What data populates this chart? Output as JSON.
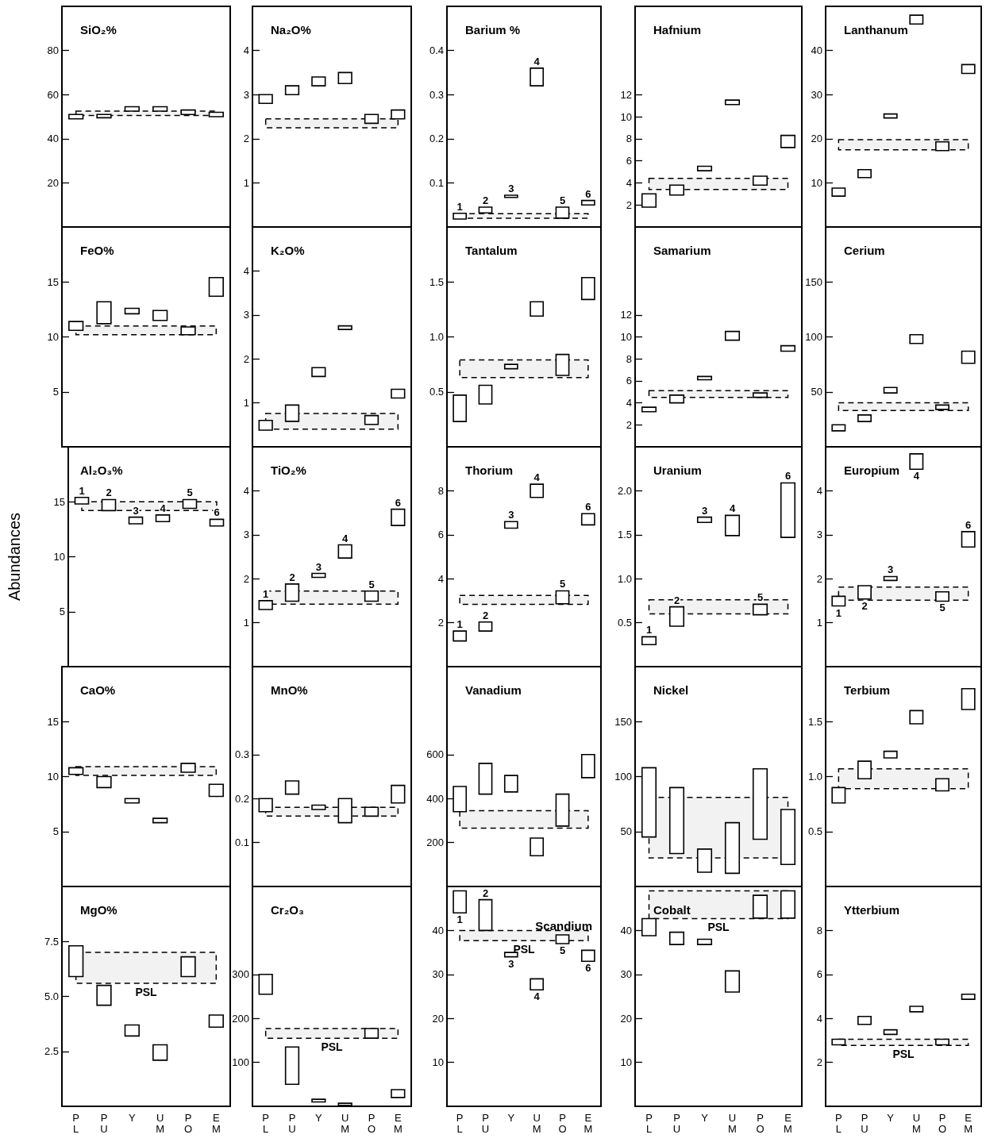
{
  "chart_data": [
    {
      "type": "bar",
      "title": "SiO₂%",
      "categories": [
        "P\nL",
        "P\nU",
        "Y",
        "U\nM",
        "P\nO",
        "E\nM"
      ],
      "base": [
        49,
        49.5,
        52.5,
        52.5,
        51,
        50
      ],
      "values": [
        2,
        1.5,
        2,
        2,
        2,
        2
      ],
      "color": "#000000",
      "ylim": [
        0,
        100
      ],
      "yticks": [
        20,
        40,
        60,
        80
      ],
      "bands": [
        {
          "axis": "y",
          "from": 50.5,
          "to": 52.5
        }
      ],
      "tick_labels": "y"
    },
    {
      "type": "bar",
      "title": "Na₂O%",
      "categories": [
        "P\nL",
        "P\nU",
        "Y",
        "U\nM",
        "P\nO",
        "E\nM"
      ],
      "base": [
        2.8,
        3.0,
        3.2,
        3.25,
        2.35,
        2.45
      ],
      "values": [
        0.2,
        0.2,
        0.2,
        0.25,
        0.2,
        0.2
      ],
      "color": "#000000",
      "ylim": [
        0,
        5
      ],
      "yticks": [
        1,
        2,
        3,
        4
      ],
      "bands": [
        {
          "axis": "y",
          "from": 2.25,
          "to": 2.45
        }
      ],
      "tick_labels": "y"
    },
    {
      "type": "bar",
      "title": "Barium %",
      "categories": [
        "P\nL",
        "P\nU",
        "Y",
        "U\nM",
        "P\nO",
        "E\nM"
      ],
      "base": [
        0.018,
        0.032,
        0.067,
        0.32,
        0.02,
        0.05
      ],
      "values": [
        0.013,
        0.013,
        0.005,
        0.04,
        0.025,
        0.01
      ],
      "color": "#000000",
      "ylim": [
        0,
        0.5
      ],
      "yticks": [
        0.1,
        0.2,
        0.3,
        0.4
      ],
      "bands": [
        {
          "axis": "y",
          "from": 0.02,
          "to": 0.03
        }
      ],
      "annotations": [
        {
          "text": "1",
          "x": "P\nL",
          "y": 0.031
        },
        {
          "text": "2",
          "x": "P\nU",
          "y": 0.045
        },
        {
          "text": "3",
          "x": "Y",
          "y": 0.072
        },
        {
          "text": "4",
          "x": "U\nM",
          "y": 0.36
        },
        {
          "text": "5",
          "x": "P\nO",
          "y": 0.045
        },
        {
          "text": "6",
          "x": "E\nM",
          "y": 0.06
        }
      ],
      "tick_labels": "y"
    },
    {
      "type": "bar",
      "title": "Hafnium",
      "categories": [
        "P\nL",
        "P\nU",
        "Y",
        "U\nM",
        "P\nO",
        "E\nM"
      ],
      "base": [
        1.8,
        2.9,
        5.1,
        11.1,
        3.8,
        7.2
      ],
      "values": [
        1.2,
        0.9,
        0.4,
        0.4,
        0.8,
        1.1
      ],
      "color": "#000000",
      "ylim": [
        0,
        20
      ],
      "yticks": [
        2,
        4,
        6,
        8,
        10,
        12
      ],
      "bands": [
        {
          "axis": "y",
          "from": 3.4,
          "to": 4.4
        }
      ],
      "tick_labels": "y"
    },
    {
      "type": "bar",
      "title": "Lanthanum",
      "categories": [
        "P\nL",
        "P\nU",
        "Y",
        "U\nM",
        "P\nO",
        "E\nM"
      ],
      "base": [
        7,
        11.2,
        24.7,
        46,
        17.3,
        34.8
      ],
      "values": [
        1.8,
        1.8,
        0.9,
        2,
        2,
        2
      ],
      "color": "#000000",
      "ylim": [
        0,
        50
      ],
      "yticks": [
        10,
        20,
        30,
        40
      ],
      "bands": [
        {
          "axis": "y",
          "from": 17.5,
          "to": 19.8
        }
      ],
      "tick_labels": "y"
    },
    {
      "type": "bar",
      "title": "FeO%",
      "categories": [
        "P\nL",
        "P\nU",
        "Y",
        "U\nM",
        "P\nO",
        "E\nM"
      ],
      "base": [
        10.6,
        11.2,
        12.1,
        11.5,
        10.2,
        13.7
      ],
      "values": [
        0.8,
        2,
        0.5,
        0.9,
        0.7,
        1.7
      ],
      "color": "#000000",
      "ylim": [
        0,
        20
      ],
      "yticks": [
        5,
        10,
        15
      ],
      "bands": [
        {
          "axis": "y",
          "from": 10.2,
          "to": 11
        }
      ],
      "tick_labels": "y"
    },
    {
      "type": "bar",
      "title": "K₂O%",
      "categories": [
        "P\nL",
        "P\nU",
        "Y",
        "U\nM",
        "P\nO",
        "E\nM"
      ],
      "base": [
        0.38,
        0.58,
        1.6,
        2.67,
        0.51,
        1.11
      ],
      "values": [
        0.22,
        0.37,
        0.2,
        0.08,
        0.2,
        0.2
      ],
      "color": "#000000",
      "ylim": [
        0,
        5
      ],
      "yticks": [
        1,
        2,
        3,
        4
      ],
      "bands": [
        {
          "axis": "y",
          "from": 0.4,
          "to": 0.76
        }
      ],
      "tick_labels": "y"
    },
    {
      "type": "bar",
      "title": "Tantalum",
      "categories": [
        "P\nL",
        "P\nU",
        "Y",
        "U\nM",
        "P\nO",
        "E\nM"
      ],
      "base": [
        0.23,
        0.39,
        0.71,
        1.19,
        0.65,
        1.34
      ],
      "values": [
        0.24,
        0.17,
        0.04,
        0.13,
        0.19,
        0.2
      ],
      "color": "#000000",
      "ylim": [
        0,
        2
      ],
      "yticks": [
        0.5,
        {
          "value": 1,
          "label": "1.0"
        },
        1.5
      ],
      "bands": [
        {
          "axis": "y",
          "from": 0.63,
          "to": 0.79
        }
      ],
      "tick_labels": "y"
    },
    {
      "type": "bar",
      "title": "Samarium",
      "categories": [
        "P\nL",
        "P\nU",
        "Y",
        "U\nM",
        "P\nO",
        "E\nM"
      ],
      "base": [
        3.2,
        4.0,
        6.1,
        9.7,
        4.5,
        8.7
      ],
      "values": [
        0.4,
        0.7,
        0.3,
        0.8,
        0.4,
        0.5
      ],
      "color": "#000000",
      "ylim": [
        0,
        20
      ],
      "yticks": [
        2,
        4,
        6,
        8,
        10,
        12
      ],
      "bands": [
        {
          "axis": "y",
          "from": 4.5,
          "to": 5.1
        }
      ],
      "tick_labels": "y"
    },
    {
      "type": "bar",
      "title": "Cerium",
      "categories": [
        "P\nL",
        "P\nU",
        "Y",
        "U\nM",
        "P\nO",
        "E\nM"
      ],
      "base": [
        14.5,
        23,
        49,
        94,
        34,
        76
      ],
      "values": [
        5.5,
        6,
        5,
        8,
        4,
        11
      ],
      "color": "#000000",
      "ylim": [
        0,
        200
      ],
      "yticks": [
        50,
        100,
        150
      ],
      "bands": [
        {
          "axis": "y",
          "from": 33,
          "to": 40
        }
      ],
      "tick_labels": "y"
    },
    {
      "type": "bar",
      "title": "Al₂O₃%",
      "ylabel": "Abundances",
      "categories": [
        "P\nL",
        "P\nU",
        "Y",
        "U\nM",
        "P\nO",
        "E\nM"
      ],
      "base": [
        14.8,
        14.2,
        13.0,
        13.2,
        14.4,
        12.8
      ],
      "values": [
        0.6,
        1.0,
        0.6,
        0.6,
        0.8,
        0.6
      ],
      "color": "#000000",
      "ylim": [
        0,
        20
      ],
      "yticks": [
        5,
        10,
        15
      ],
      "bands": [
        {
          "axis": "y",
          "from": 14.2,
          "to": 15
        }
      ],
      "annotations": [
        {
          "text": "1",
          "x": "P\nL",
          "y": 15.4
        },
        {
          "text": "2",
          "x": "P\nU",
          "y": 15.2
        },
        {
          "text": "3",
          "x": "Y",
          "y": 13.6
        },
        {
          "text": "4",
          "x": "U\nM",
          "y": 13.8
        },
        {
          "text": "5",
          "x": "P\nO",
          "y": 15.2
        },
        {
          "text": "6",
          "x": "E\nM",
          "y": 13.4
        }
      ],
      "tick_labels": "y"
    },
    {
      "type": "bar",
      "title": "TiO₂%",
      "categories": [
        "P\nL",
        "P\nU",
        "Y",
        "U\nM",
        "P\nO",
        "E\nM"
      ],
      "base": [
        1.3,
        1.49,
        2.03,
        2.47,
        1.49,
        3.21
      ],
      "values": [
        0.2,
        0.39,
        0.09,
        0.3,
        0.23,
        0.37
      ],
      "color": "#000000",
      "ylim": [
        0,
        5
      ],
      "yticks": [
        1,
        2,
        3,
        4
      ],
      "bands": [
        {
          "axis": "y",
          "from": 1.42,
          "to": 1.72
        }
      ],
      "annotations": [
        {
          "text": "1",
          "x": "P\nL",
          "y": 1.5
        },
        {
          "text": "2",
          "x": "P\nU",
          "y": 1.88
        },
        {
          "text": "3",
          "x": "Y",
          "y": 2.12
        },
        {
          "text": "4",
          "x": "U\nM",
          "y": 2.77
        },
        {
          "text": "5",
          "x": "P\nO",
          "y": 1.72
        },
        {
          "text": "6",
          "x": "E\nM",
          "y": 3.58
        }
      ],
      "tick_labels": "y"
    },
    {
      "type": "bar",
      "title": "Thorium",
      "categories": [
        "P\nL",
        "P\nU",
        "Y",
        "U\nM",
        "P\nO",
        "E\nM"
      ],
      "base": [
        1.17,
        1.62,
        6.3,
        7.7,
        2.86,
        6.45
      ],
      "values": [
        0.45,
        0.41,
        0.3,
        0.6,
        0.59,
        0.51
      ],
      "color": "#000000",
      "ylim": [
        0,
        10
      ],
      "yticks": [
        2,
        4,
        6,
        8
      ],
      "bands": [
        {
          "axis": "y",
          "from": 2.83,
          "to": 3.24
        }
      ],
      "annotations": [
        {
          "text": "1",
          "x": "P\nL",
          "y": 1.62
        },
        {
          "text": "2",
          "x": "P\nU",
          "y": 2.03
        },
        {
          "text": "3",
          "x": "Y",
          "y": 6.6
        },
        {
          "text": "4",
          "x": "U\nM",
          "y": 8.3
        },
        {
          "text": "5",
          "x": "P\nO",
          "y": 3.45
        },
        {
          "text": "6",
          "x": "E\nM",
          "y": 6.96
        }
      ],
      "tick_labels": "y"
    },
    {
      "type": "bar",
      "title": "Uranium",
      "categories": [
        "P\nL",
        "P\nU",
        "Y",
        "U\nM",
        "P\nO",
        "E\nM"
      ],
      "base": [
        0.25,
        0.46,
        1.64,
        1.49,
        0.59,
        1.47
      ],
      "values": [
        0.09,
        0.22,
        0.06,
        0.23,
        0.12,
        0.62
      ],
      "color": "#000000",
      "ylim": [
        0,
        2.5
      ],
      "yticks": [
        0.5,
        {
          "value": 1,
          "label": "1.0"
        },
        1.5,
        {
          "value": 2,
          "label": "2.0"
        }
      ],
      "bands": [
        {
          "axis": "y",
          "from": 0.6,
          "to": 0.76
        }
      ],
      "annotations": [
        {
          "text": "1",
          "x": "P\nL",
          "y": 0.34
        },
        {
          "text": "2",
          "x": "P\nU",
          "y": 0.68
        },
        {
          "text": "3",
          "x": "Y",
          "y": 1.7
        },
        {
          "text": "4",
          "x": "U\nM",
          "y": 1.72
        },
        {
          "text": "5",
          "x": "P\nO",
          "y": 0.71
        },
        {
          "text": "6",
          "x": "E\nM",
          "y": 2.09
        }
      ],
      "tick_labels": "y"
    },
    {
      "type": "bar",
      "title": "Europium",
      "categories": [
        "P\nL",
        "P\nU",
        "Y",
        "U\nM",
        "P\nO",
        "E\nM"
      ],
      "base": [
        1.38,
        1.54,
        1.96,
        4.49,
        1.49,
        2.72
      ],
      "values": [
        0.22,
        0.3,
        0.09,
        0.35,
        0.21,
        0.35
      ],
      "color": "#000000",
      "ylim": [
        0,
        5
      ],
      "yticks": [
        1,
        2,
        3,
        4
      ],
      "bands": [
        {
          "axis": "y",
          "from": 1.51,
          "to": 1.81
        }
      ],
      "annotations": [
        {
          "text": "1",
          "x": "P\nL",
          "y": 1.38
        },
        {
          "text": "2",
          "x": "P\nU",
          "y": 1.54
        },
        {
          "text": "3",
          "x": "Y",
          "y": 2.05
        },
        {
          "text": "4",
          "x": "U\nM",
          "y": 4.49
        },
        {
          "text": "5",
          "x": "P\nO",
          "y": 1.49
        },
        {
          "text": "6",
          "x": "E\nM",
          "y": 3.07
        }
      ],
      "tick_labels": "y"
    },
    {
      "type": "bar",
      "title": "CaO%",
      "categories": [
        "P\nL",
        "P\nU",
        "Y",
        "U\nM",
        "P\nO",
        "E\nM"
      ],
      "base": [
        10.2,
        9.0,
        7.6,
        5.8,
        10.4,
        8.2
      ],
      "values": [
        0.6,
        1,
        0.4,
        0.4,
        0.8,
        1.1
      ],
      "color": "#000000",
      "ylim": [
        0,
        20
      ],
      "yticks": [
        5,
        10,
        15
      ],
      "bands": [
        {
          "axis": "y",
          "from": 10.1,
          "to": 10.9
        }
      ],
      "tick_labels": "y"
    },
    {
      "type": "bar",
      "title": "MnO%",
      "categories": [
        "P\nL",
        "P\nU",
        "Y",
        "U\nM",
        "P\nO",
        "E\nM"
      ],
      "base": [
        0.17,
        0.21,
        0.175,
        0.145,
        0.16,
        0.19
      ],
      "values": [
        0.03,
        0.03,
        0.01,
        0.055,
        0.02,
        0.04
      ],
      "color": "#000000",
      "ylim": [
        0,
        0.5
      ],
      "yticks": [
        0.1,
        0.2,
        0.3
      ],
      "bands": [
        {
          "axis": "y",
          "from": 0.16,
          "to": 0.18
        }
      ],
      "tick_labels": "y"
    },
    {
      "type": "bar",
      "title": "Vanadium",
      "categories": [
        "P\nL",
        "P\nU",
        "Y",
        "U\nM",
        "P\nO",
        "E\nM"
      ],
      "base": [
        340,
        420,
        430,
        140,
        275,
        495
      ],
      "values": [
        115,
        140,
        75,
        80,
        145,
        105
      ],
      "color": "#000000",
      "ylim": [
        0,
        1000
      ],
      "yticks": [
        200,
        400,
        600
      ],
      "bands": [
        {
          "axis": "y",
          "from": 265,
          "to": 345
        }
      ],
      "tick_labels": "y"
    },
    {
      "type": "bar",
      "title": "Nickel",
      "categories": [
        "P\nL",
        "P\nU",
        "Y",
        "U\nM",
        "P\nO",
        "E\nM"
      ],
      "base": [
        45,
        30,
        13,
        12,
        43,
        20
      ],
      "values": [
        63,
        60,
        21,
        46,
        64,
        50
      ],
      "color": "#000000",
      "ylim": [
        0,
        200
      ],
      "yticks": [
        50,
        100,
        150
      ],
      "bands": [
        {
          "axis": "y",
          "from": 26,
          "to": 81
        }
      ],
      "tick_labels": "y"
    },
    {
      "type": "bar",
      "title": "Terbium",
      "categories": [
        "P\nL",
        "P\nU",
        "Y",
        "U\nM",
        "P\nO",
        "E\nM"
      ],
      "base": [
        0.76,
        0.98,
        1.17,
        1.48,
        0.87,
        1.61
      ],
      "values": [
        0.14,
        0.16,
        0.06,
        0.12,
        0.11,
        0.19
      ],
      "color": "#000000",
      "ylim": [
        0,
        2
      ],
      "yticks": [
        0.5,
        {
          "value": 1,
          "label": "1.0"
        },
        1.5
      ],
      "bands": [
        {
          "axis": "y",
          "from": 0.89,
          "to": 1.07
        }
      ],
      "tick_labels": "y"
    },
    {
      "type": "bar",
      "title": "MgO%",
      "categories": [
        "P\nL",
        "P\nU",
        "Y",
        "U\nM",
        "P\nO",
        "E\nM"
      ],
      "base": [
        5.9,
        4.6,
        3.2,
        2.1,
        5.9,
        3.6
      ],
      "values": [
        1.4,
        0.9,
        0.5,
        0.7,
        0.9,
        0.55
      ],
      "color": "#000000",
      "ylim": [
        0,
        10
      ],
      "yticks": [
        2.5,
        {
          "value": 5,
          "label": "5.0"
        },
        7.5
      ],
      "bands": [
        {
          "axis": "y",
          "from": 5.6,
          "to": 7.0,
          "label": "PSL"
        }
      ]
    },
    {
      "type": "bar",
      "title": "Cr₂O₃",
      "categories": [
        "P\nL",
        "P\nU",
        "Y",
        "U\nM",
        "P\nO",
        "E\nM"
      ],
      "base": [
        255,
        50,
        10,
        2,
        155,
        20
      ],
      "values": [
        45,
        85,
        6,
        5,
        22,
        18
      ],
      "color": "#000000",
      "ylim": [
        0,
        500
      ],
      "yticks": [
        100,
        200,
        300
      ],
      "bands": [
        {
          "axis": "y",
          "from": 155,
          "to": 177,
          "label": "PSL"
        }
      ]
    },
    {
      "type": "bar",
      "title": "Scandium",
      "categories": [
        "P\nL",
        "P\nU",
        "Y",
        "U\nM",
        "P\nO",
        "E\nM"
      ],
      "base": [
        44,
        40,
        34,
        26.5,
        37,
        33
      ],
      "values": [
        5,
        7,
        1,
        2.5,
        2,
        2.5
      ],
      "color": "#000000",
      "ylim": [
        0,
        50
      ],
      "yticks": [
        10,
        20,
        30,
        40
      ],
      "bands": [
        {
          "axis": "y",
          "from": 37.7,
          "to": 40,
          "label": "PSL"
        }
      ],
      "annotations": [
        {
          "text": "1",
          "x": "P\nL",
          "y": 44
        },
        {
          "text": "2",
          "x": "P\nU",
          "y": 47
        },
        {
          "text": "3",
          "x": "Y",
          "y": 34
        },
        {
          "text": "4",
          "x": "U\nM",
          "y": 26.5
        },
        {
          "text": "5",
          "x": "P\nO",
          "y": 37
        },
        {
          "text": "6",
          "x": "E\nM",
          "y": 33
        }
      ]
    },
    {
      "type": "bar",
      "title": "Cobalt",
      "categories": [
        "P\nL",
        "P\nU",
        "Y",
        "U\nM",
        "P\nO",
        "E\nM"
      ],
      "base": [
        38.8,
        36.8,
        36.8,
        26,
        42.8,
        42.8
      ],
      "values": [
        3.9,
        2.8,
        1.2,
        4.8,
        5.2,
        6.2
      ],
      "color": "#000000",
      "ylim": [
        0,
        50
      ],
      "yticks": [
        10,
        20,
        30,
        40
      ],
      "bands": [
        {
          "axis": "y",
          "from": 42.7,
          "to": 49,
          "label": "PSL"
        }
      ]
    },
    {
      "type": "bar",
      "title": "Ytterbium",
      "categories": [
        "P\nL",
        "P\nU",
        "Y",
        "U\nM",
        "P\nO",
        "E\nM"
      ],
      "base": [
        2.8,
        3.73,
        3.27,
        4.3,
        2.8,
        4.87
      ],
      "values": [
        0.25,
        0.36,
        0.21,
        0.25,
        0.25,
        0.23
      ],
      "color": "#000000",
      "ylim": [
        0,
        10
      ],
      "yticks": [
        2,
        4,
        6,
        8
      ],
      "bands": [
        {
          "axis": "y",
          "from": 2.77,
          "to": 3.05,
          "label": "PSL"
        }
      ]
    }
  ]
}
